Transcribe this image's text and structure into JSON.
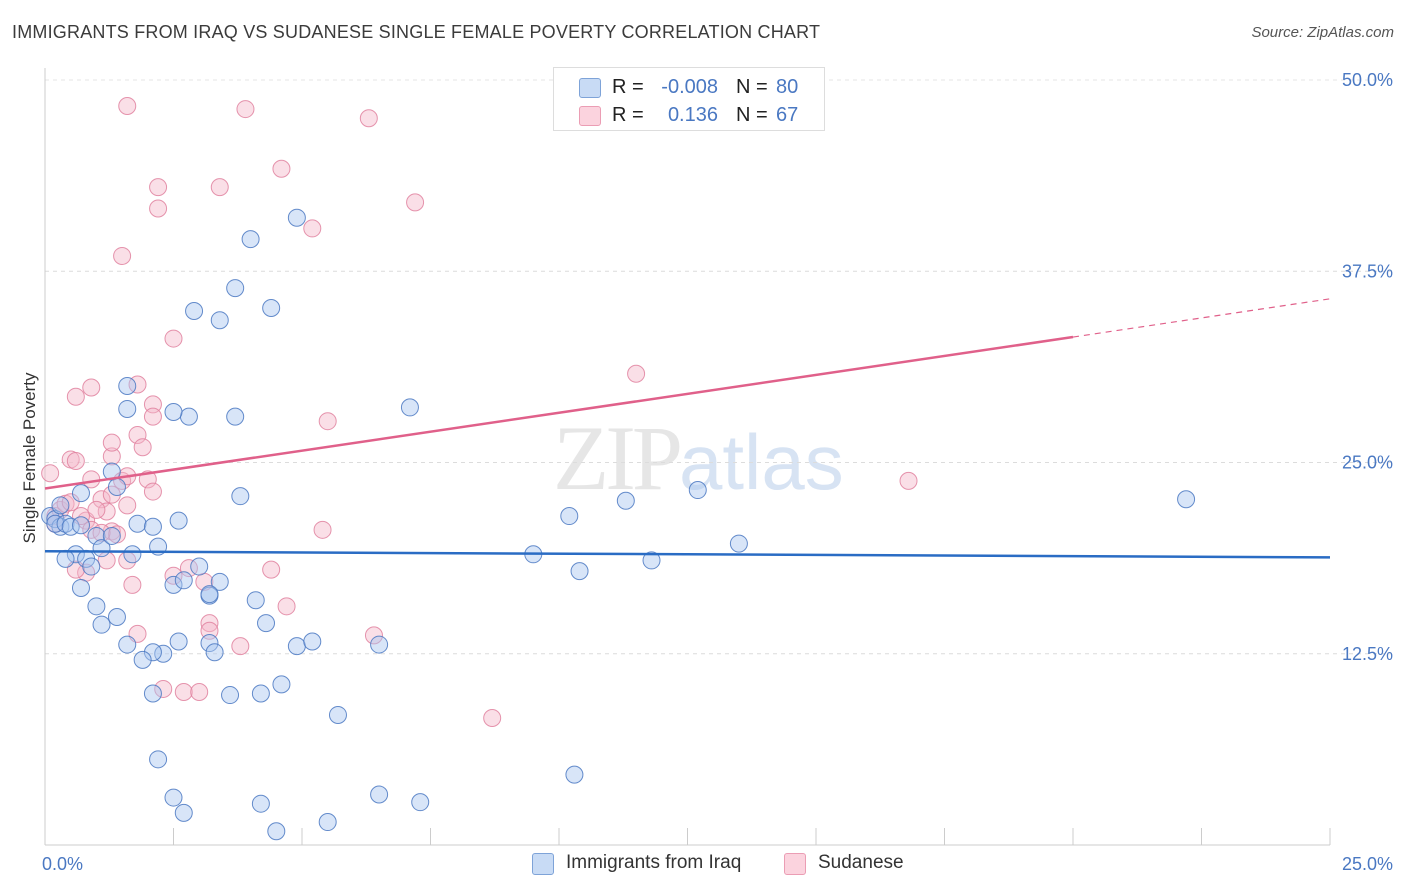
{
  "header": {
    "title": "IMMIGRANTS FROM IRAQ VS SUDANESE SINGLE FEMALE POVERTY CORRELATION CHART",
    "source": "Source: ZipAtlas.com"
  },
  "watermark": {
    "zip": "ZIP",
    "atlas": "atlas"
  },
  "legend": {
    "rows": [
      {
        "r_label": "R =",
        "r_value": "-0.008",
        "n_label": "N =",
        "n_value": "80",
        "color": "#a9c6ef"
      },
      {
        "r_label": "R =",
        "r_value": "0.136",
        "n_label": "N =",
        "n_value": "67",
        "color": "#f5b8c9"
      }
    ]
  },
  "bottom_legend": [
    {
      "label": "Immigrants from Iraq",
      "color": "#a9c6ef"
    },
    {
      "label": "Sudanese",
      "color": "#f5b8c9"
    }
  ],
  "chart_data": {
    "type": "scatter",
    "title": "IMMIGRANTS FROM IRAQ VS SUDANESE SINGLE FEMALE POVERTY CORRELATION CHART",
    "xlabel": "",
    "ylabel": "Single Female Poverty",
    "xlim": [
      0,
      25
    ],
    "ylim": [
      0,
      50
    ],
    "x_tick_labels": [
      "0.0%",
      "25.0%"
    ],
    "y_ticks": [
      12.5,
      25.0,
      37.5,
      50.0
    ],
    "y_tick_labels": [
      "12.5%",
      "25.0%",
      "37.5%",
      "50.0%"
    ],
    "grid": true,
    "series": [
      {
        "name": "Immigrants from Iraq",
        "color": "#a9c6ef",
        "edge": "#4a78c2",
        "trend": {
          "x": [
            0,
            25
          ],
          "y": [
            19.2,
            18.8
          ],
          "color": "#2a6cc4"
        },
        "points": [
          [
            0.1,
            21.5
          ],
          [
            0.2,
            21.3
          ],
          [
            0.3,
            22.2
          ],
          [
            0.3,
            20.8
          ],
          [
            0.2,
            21.0
          ],
          [
            0.4,
            21.0
          ],
          [
            0.5,
            20.8
          ],
          [
            0.7,
            20.9
          ],
          [
            0.6,
            19.0
          ],
          [
            0.8,
            18.7
          ],
          [
            0.4,
            18.7
          ],
          [
            0.9,
            18.2
          ],
          [
            0.7,
            23.0
          ],
          [
            1.0,
            20.2
          ],
          [
            1.1,
            19.4
          ],
          [
            0.7,
            16.8
          ],
          [
            1.3,
            24.4
          ],
          [
            1.6,
            30.0
          ],
          [
            1.6,
            28.5
          ],
          [
            1.4,
            23.4
          ],
          [
            1.8,
            21.0
          ],
          [
            1.7,
            19.0
          ],
          [
            1.3,
            20.2
          ],
          [
            2.1,
            20.8
          ],
          [
            2.2,
            19.5
          ],
          [
            2.6,
            21.2
          ],
          [
            2.5,
            17.0
          ],
          [
            2.7,
            17.3
          ],
          [
            3.0,
            18.2
          ],
          [
            3.2,
            16.3
          ],
          [
            3.4,
            17.2
          ],
          [
            3.2,
            16.4
          ],
          [
            3.7,
            28.0
          ],
          [
            3.8,
            22.8
          ],
          [
            4.1,
            16.0
          ],
          [
            4.3,
            14.5
          ],
          [
            4.9,
            13.0
          ],
          [
            5.2,
            13.3
          ],
          [
            4.6,
            10.5
          ],
          [
            5.7,
            8.5
          ],
          [
            2.8,
            28.0
          ],
          [
            2.5,
            28.3
          ],
          [
            2.9,
            34.9
          ],
          [
            3.4,
            34.3
          ],
          [
            3.7,
            36.4
          ],
          [
            4.0,
            39.6
          ],
          [
            4.4,
            35.1
          ],
          [
            4.9,
            41.0
          ],
          [
            3.6,
            9.8
          ],
          [
            2.3,
            12.5
          ],
          [
            2.1,
            12.6
          ],
          [
            1.6,
            13.1
          ],
          [
            1.4,
            14.9
          ],
          [
            1.1,
            14.4
          ],
          [
            1.9,
            12.1
          ],
          [
            2.6,
            13.3
          ],
          [
            3.2,
            13.2
          ],
          [
            3.3,
            12.6
          ],
          [
            4.2,
            9.9
          ],
          [
            2.1,
            9.9
          ],
          [
            2.2,
            5.6
          ],
          [
            2.5,
            3.1
          ],
          [
            2.7,
            2.1
          ],
          [
            4.2,
            2.7
          ],
          [
            4.5,
            0.9
          ],
          [
            5.5,
            1.5
          ],
          [
            6.5,
            3.3
          ],
          [
            6.5,
            13.1
          ],
          [
            7.3,
            2.8
          ],
          [
            7.1,
            28.6
          ],
          [
            9.5,
            19.0
          ],
          [
            10.2,
            21.5
          ],
          [
            10.4,
            17.9
          ],
          [
            11.3,
            22.5
          ],
          [
            11.8,
            18.6
          ],
          [
            12.7,
            23.2
          ],
          [
            13.5,
            19.7
          ],
          [
            22.2,
            22.6
          ],
          [
            10.3,
            4.6
          ],
          [
            1.0,
            15.6
          ]
        ]
      },
      {
        "name": "Sudanese",
        "color": "#f5b8c9",
        "edge": "#e0819f",
        "trend": {
          "x": [
            0,
            20
          ],
          "y": [
            23.3,
            33.2
          ],
          "color": "#e0608a"
        },
        "trend_extension": {
          "x": [
            20,
            25
          ],
          "y": [
            33.2,
            35.7
          ]
        },
        "points": [
          [
            0.1,
            24.3
          ],
          [
            0.2,
            21.5
          ],
          [
            0.3,
            21.9
          ],
          [
            0.4,
            22.3
          ],
          [
            0.5,
            22.4
          ],
          [
            0.5,
            25.2
          ],
          [
            0.6,
            25.1
          ],
          [
            0.9,
            29.9
          ],
          [
            0.6,
            29.3
          ],
          [
            0.9,
            23.9
          ],
          [
            1.1,
            22.6
          ],
          [
            1.3,
            25.4
          ],
          [
            1.3,
            26.3
          ],
          [
            1.5,
            23.8
          ],
          [
            1.6,
            24.1
          ],
          [
            1.6,
            22.2
          ],
          [
            1.2,
            21.8
          ],
          [
            0.8,
            21.2
          ],
          [
            0.9,
            20.6
          ],
          [
            1.3,
            20.5
          ],
          [
            1.4,
            20.3
          ],
          [
            1.2,
            18.6
          ],
          [
            0.8,
            17.8
          ],
          [
            0.6,
            18.0
          ],
          [
            1.8,
            26.8
          ],
          [
            1.9,
            26.0
          ],
          [
            2.1,
            28.8
          ],
          [
            2.1,
            28.0
          ],
          [
            1.8,
            30.1
          ],
          [
            2.0,
            23.9
          ],
          [
            2.1,
            23.1
          ],
          [
            2.5,
            33.1
          ],
          [
            1.6,
            18.6
          ],
          [
            1.7,
            17.0
          ],
          [
            1.8,
            13.8
          ],
          [
            2.5,
            17.6
          ],
          [
            2.8,
            18.1
          ],
          [
            3.1,
            17.2
          ],
          [
            3.2,
            14.5
          ],
          [
            3.2,
            14.0
          ],
          [
            2.3,
            10.2
          ],
          [
            2.7,
            10.0
          ],
          [
            3.0,
            10.0
          ],
          [
            3.8,
            13.0
          ],
          [
            4.4,
            18.0
          ],
          [
            4.7,
            15.6
          ],
          [
            5.4,
            20.6
          ],
          [
            5.5,
            27.7
          ],
          [
            6.4,
            13.7
          ],
          [
            7.2,
            42.0
          ],
          [
            6.3,
            47.5
          ],
          [
            5.2,
            40.3
          ],
          [
            4.6,
            44.2
          ],
          [
            3.4,
            43.0
          ],
          [
            2.2,
            43.0
          ],
          [
            2.2,
            41.6
          ],
          [
            1.6,
            48.3
          ],
          [
            3.9,
            48.1
          ],
          [
            1.5,
            38.5
          ],
          [
            11.5,
            30.8
          ],
          [
            8.7,
            8.3
          ],
          [
            16.8,
            23.8
          ],
          [
            1.0,
            21.9
          ],
          [
            1.3,
            22.9
          ],
          [
            0.2,
            21.0
          ],
          [
            0.7,
            21.5
          ],
          [
            1.1,
            20.4
          ]
        ]
      }
    ]
  }
}
